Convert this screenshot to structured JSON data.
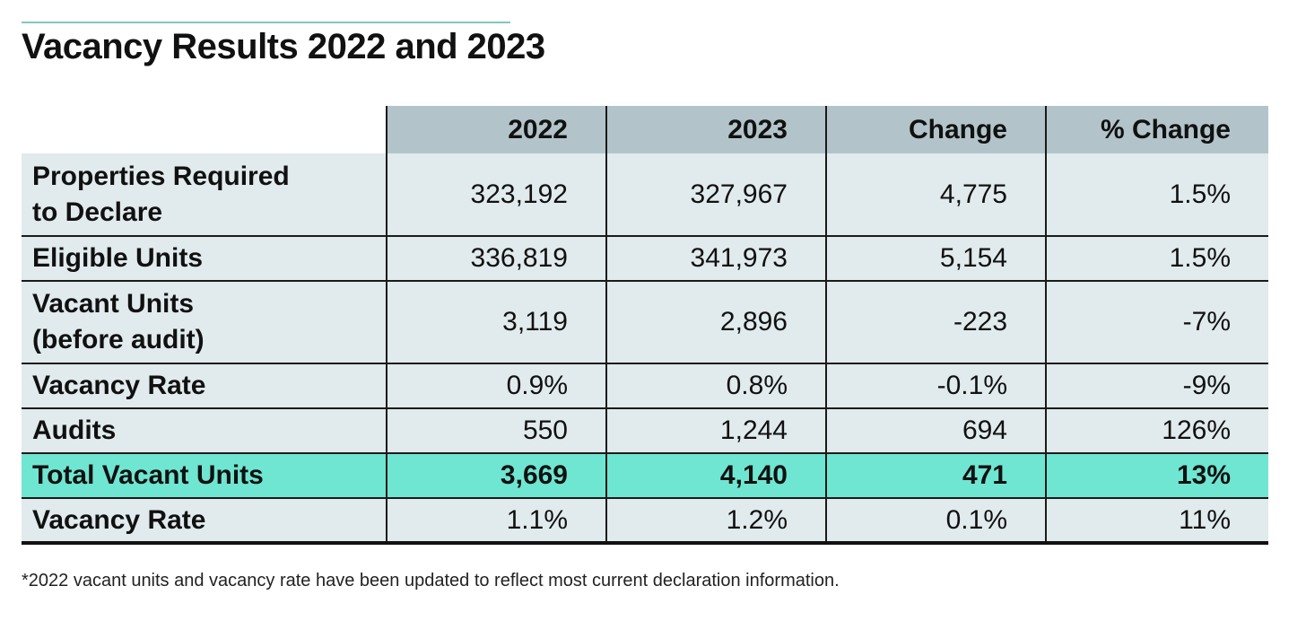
{
  "title": "Vacancy Results 2022 and 2023",
  "table": {
    "headers": [
      "",
      "2022",
      "2023",
      "Change",
      "% Change"
    ],
    "rows": [
      {
        "label": "Properties Required to Declare",
        "label_lines": [
          "Properties Required",
          "to Declare"
        ],
        "values": [
          "323,192",
          "327,967",
          "4,775",
          "1.5%"
        ]
      },
      {
        "label": "Eligible Units",
        "label_lines": [
          "Eligible Units"
        ],
        "values": [
          "336,819",
          "341,973",
          "5,154",
          "1.5%"
        ]
      },
      {
        "label": "Vacant Units (before audit)",
        "label_lines": [
          "Vacant Units",
          "(before audit)"
        ],
        "values": [
          "3,119",
          "2,896",
          "-223",
          "-7%"
        ]
      },
      {
        "label": "Vacancy Rate",
        "label_lines": [
          "Vacancy Rate"
        ],
        "values": [
          "0.9%",
          "0.8%",
          "-0.1%",
          "-9%"
        ]
      },
      {
        "label": "Audits",
        "label_lines": [
          "Audits"
        ],
        "values": [
          "550",
          "1,244",
          "694",
          "126%"
        ]
      },
      {
        "label": "Total Vacant Units",
        "label_lines": [
          "Total Vacant Units"
        ],
        "values": [
          "3,669",
          "4,140",
          "471",
          "13%"
        ],
        "highlight": true
      },
      {
        "label": "Vacancy Rate",
        "label_lines": [
          "Vacancy Rate"
        ],
        "values": [
          "1.1%",
          "1.2%",
          "0.1%",
          "11%"
        ]
      }
    ]
  },
  "footnote": "*2022 vacant units and vacancy rate have been updated to reflect most current declaration information.",
  "colors": {
    "header_bg": "#b2c4ca",
    "row_bg": "#e1eaed",
    "highlight_bg": "#6fe6d1",
    "accent_rule": "#7fc7c1"
  }
}
